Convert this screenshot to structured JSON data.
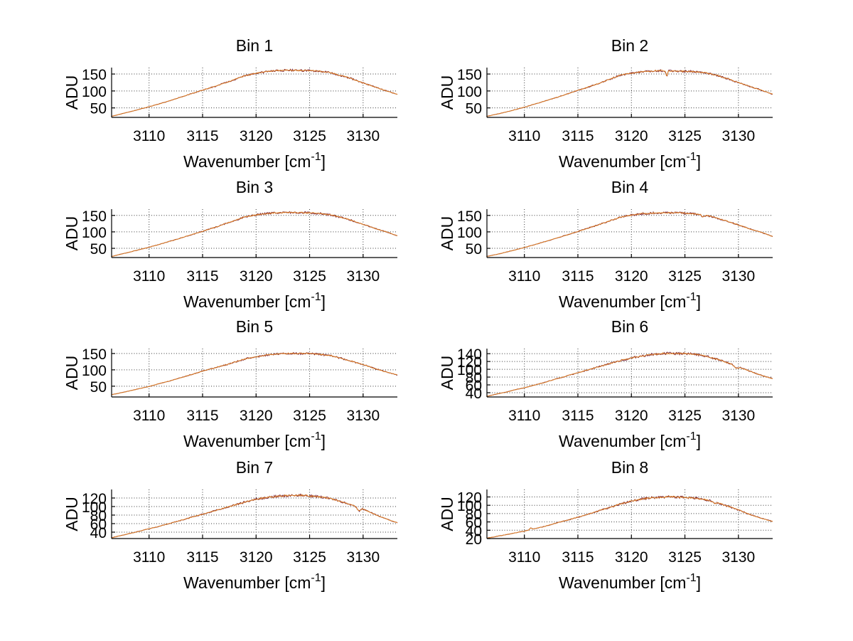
{
  "figure": {
    "background": "#ffffff",
    "description": "4x2 grid of spectra, ADU versus wavenumber, Bin 1 to Bin 8"
  },
  "style": {
    "line_color": "#dd7e22",
    "underlay_color": "#7b2840",
    "grid_color": "#3a3a3a",
    "axis_color": "#000000"
  },
  "chart_data": [
    {
      "type": "line",
      "title": "Bin 1",
      "ylabel": "ADU",
      "xlabel": "Wavenumber [cm⁻¹]",
      "xlabel_main": "Wavenumber [cm",
      "xlabel_sup": "-1",
      "xlabel_end": "]",
      "xlim": [
        3106.5,
        3133.2
      ],
      "xticks": [
        3110,
        3115,
        3120,
        3125,
        3130
      ],
      "ylim": [
        22,
        169
      ],
      "yticks": [
        50,
        100,
        150
      ],
      "grid": true,
      "series": [
        {
          "name": "spectrum",
          "points": [
            [
              3106.5,
              25
            ],
            [
              3108,
              37
            ],
            [
              3110,
              53
            ],
            [
              3112,
              72
            ],
            [
              3114,
              92
            ],
            [
              3116,
              112
            ],
            [
              3117.5,
              128
            ],
            [
              3119,
              145
            ],
            [
              3120,
              152
            ],
            [
              3121,
              157
            ],
            [
              3122,
              160
            ],
            [
              3123,
              161
            ],
            [
              3124,
              161
            ],
            [
              3125,
              160
            ],
            [
              3126,
              158
            ],
            [
              3127,
              153
            ],
            [
              3128,
              145
            ],
            [
              3129,
              135
            ],
            [
              3130,
              124
            ],
            [
              3131,
              113
            ],
            [
              3132,
              102
            ],
            [
              3133.2,
              90
            ]
          ]
        }
      ],
      "features": []
    },
    {
      "type": "line",
      "title": "Bin 2",
      "ylabel": "ADU",
      "xlabel": "Wavenumber [cm⁻¹]",
      "xlabel_main": "Wavenumber [cm",
      "xlabel_sup": "-1",
      "xlabel_end": "]",
      "xlim": [
        3106.5,
        3133.2
      ],
      "xticks": [
        3110,
        3115,
        3120,
        3125,
        3130
      ],
      "ylim": [
        22,
        169
      ],
      "yticks": [
        50,
        100,
        150
      ],
      "grid": true,
      "series": [
        {
          "name": "spectrum",
          "points": [
            [
              3106.5,
              25
            ],
            [
              3108,
              36
            ],
            [
              3110,
              52
            ],
            [
              3112,
              71
            ],
            [
              3114,
              91
            ],
            [
              3116,
              112
            ],
            [
              3117.5,
              129
            ],
            [
              3119,
              147
            ],
            [
              3120,
              153
            ],
            [
              3121,
              157
            ],
            [
              3122,
              159
            ],
            [
              3123,
              160
            ],
            [
              3124,
              159
            ],
            [
              3125,
              158
            ],
            [
              3126,
              157
            ],
            [
              3127,
              153
            ],
            [
              3128,
              146
            ],
            [
              3129,
              136
            ],
            [
              3130,
              125
            ],
            [
              3131,
              114
            ],
            [
              3132,
              104
            ],
            [
              3133.2,
              90
            ]
          ]
        }
      ],
      "features": [
        {
          "x": 3123.3,
          "depth": 16,
          "width": 0.07
        }
      ]
    },
    {
      "type": "line",
      "title": "Bin 3",
      "ylabel": "ADU",
      "xlabel": "Wavenumber [cm⁻¹]",
      "xlabel_main": "Wavenumber [cm",
      "xlabel_sup": "-1",
      "xlabel_end": "]",
      "xlim": [
        3106.5,
        3133.2
      ],
      "xticks": [
        3110,
        3115,
        3120,
        3125,
        3130
      ],
      "ylim": [
        22,
        169
      ],
      "yticks": [
        50,
        100,
        150
      ],
      "grid": true,
      "series": [
        {
          "name": "spectrum",
          "points": [
            [
              3106.5,
              25
            ],
            [
              3108,
              37
            ],
            [
              3110,
              53
            ],
            [
              3112,
              72
            ],
            [
              3114,
              92
            ],
            [
              3116,
              112
            ],
            [
              3117.5,
              129
            ],
            [
              3119,
              146
            ],
            [
              3120,
              152
            ],
            [
              3121,
              156
            ],
            [
              3122,
              158
            ],
            [
              3123,
              159
            ],
            [
              3124,
              159
            ],
            [
              3125,
              158
            ],
            [
              3126,
              156
            ],
            [
              3127,
              151
            ],
            [
              3128,
              143
            ],
            [
              3129,
              134
            ],
            [
              3130,
              123
            ],
            [
              3131,
              112
            ],
            [
              3132,
              102
            ],
            [
              3133.2,
              88
            ]
          ]
        }
      ],
      "features": []
    },
    {
      "type": "line",
      "title": "Bin 4",
      "ylabel": "ADU",
      "xlabel": "Wavenumber [cm⁻¹]",
      "xlabel_main": "Wavenumber [cm",
      "xlabel_sup": "-1",
      "xlabel_end": "]",
      "xlim": [
        3106.5,
        3133.2
      ],
      "xticks": [
        3110,
        3115,
        3120,
        3125,
        3130
      ],
      "ylim": [
        22,
        169
      ],
      "yticks": [
        50,
        100,
        150
      ],
      "grid": true,
      "series": [
        {
          "name": "spectrum",
          "points": [
            [
              3106.5,
              25
            ],
            [
              3108,
              36
            ],
            [
              3110,
              52
            ],
            [
              3112,
              71
            ],
            [
              3114,
              91
            ],
            [
              3116,
              111
            ],
            [
              3117.5,
              128
            ],
            [
              3119,
              145
            ],
            [
              3120,
              151
            ],
            [
              3121,
              155
            ],
            [
              3122,
              157
            ],
            [
              3123,
              158
            ],
            [
              3124,
              158
            ],
            [
              3125,
              157
            ],
            [
              3126,
              155
            ],
            [
              3127,
              150
            ],
            [
              3128,
              142
            ],
            [
              3129,
              132
            ],
            [
              3130,
              121
            ],
            [
              3131,
              110
            ],
            [
              3132,
              100
            ],
            [
              3133.2,
              86
            ]
          ]
        }
      ],
      "features": [
        {
          "x": 3126.7,
          "depth": 6,
          "width": 0.12
        }
      ]
    },
    {
      "type": "line",
      "title": "Bin 5",
      "ylabel": "ADU",
      "xlabel": "Wavenumber [cm⁻¹]",
      "xlabel_main": "Wavenumber [cm",
      "xlabel_sup": "-1",
      "xlabel_end": "]",
      "xlim": [
        3106.5,
        3133.2
      ],
      "xticks": [
        3110,
        3115,
        3120,
        3125,
        3130
      ],
      "ylim": [
        17,
        165
      ],
      "yticks": [
        50,
        100,
        150
      ],
      "grid": true,
      "series": [
        {
          "name": "spectrum",
          "points": [
            [
              3106.5,
              24
            ],
            [
              3108,
              34
            ],
            [
              3110,
              49
            ],
            [
              3112,
              67
            ],
            [
              3114,
              86
            ],
            [
              3116,
              105
            ],
            [
              3117.5,
              119
            ],
            [
              3119,
              133
            ],
            [
              3120,
              140
            ],
            [
              3121,
              145
            ],
            [
              3122,
              148
            ],
            [
              3123,
              150
            ],
            [
              3124,
              150
            ],
            [
              3125,
              149
            ],
            [
              3126,
              147
            ],
            [
              3127,
              143
            ],
            [
              3128,
              135
            ],
            [
              3129,
              126
            ],
            [
              3130,
              116
            ],
            [
              3131,
              105
            ],
            [
              3132,
              95
            ],
            [
              3133.2,
              84
            ]
          ]
        }
      ],
      "features": []
    },
    {
      "type": "line",
      "title": "Bin 6",
      "ylabel": "ADU",
      "xlabel": "Wavenumber [cm⁻¹]",
      "xlabel_main": "Wavenumber [cm",
      "xlabel_sup": "-1",
      "xlabel_end": "]",
      "xlim": [
        3106.5,
        3133.2
      ],
      "xticks": [
        3110,
        3115,
        3120,
        3125,
        3130
      ],
      "ylim": [
        29,
        153
      ],
      "yticks": [
        40,
        60,
        80,
        100,
        120,
        140
      ],
      "grid": true,
      "series": [
        {
          "name": "spectrum",
          "points": [
            [
              3106.5,
              31
            ],
            [
              3108,
              40
            ],
            [
              3110,
              53
            ],
            [
              3112,
              67
            ],
            [
              3114,
              83
            ],
            [
              3116,
              99
            ],
            [
              3117.5,
              111
            ],
            [
              3119,
              123
            ],
            [
              3120,
              129
            ],
            [
              3121,
              134
            ],
            [
              3122,
              138
            ],
            [
              3123,
              141
            ],
            [
              3124,
              141
            ],
            [
              3125,
              140
            ],
            [
              3126,
              138
            ],
            [
              3127,
              133
            ],
            [
              3128,
              126
            ],
            [
              3129,
              117
            ],
            [
              3130,
              107
            ],
            [
              3131,
              96
            ],
            [
              3132,
              86
            ],
            [
              3133.2,
              76
            ]
          ]
        }
      ],
      "features": [
        {
          "x": 3129.8,
          "depth": 6,
          "width": 0.18
        }
      ]
    },
    {
      "type": "line",
      "title": "Bin 7",
      "ylabel": "ADU",
      "xlabel": "Wavenumber [cm⁻¹]",
      "xlabel_main": "Wavenumber [cm",
      "xlabel_sup": "-1",
      "xlabel_end": "]",
      "xlim": [
        3106.5,
        3133.2
      ],
      "xticks": [
        3110,
        3115,
        3120,
        3125,
        3130
      ],
      "ylim": [
        25,
        140
      ],
      "yticks": [
        40,
        60,
        80,
        100,
        120
      ],
      "grid": true,
      "series": [
        {
          "name": "spectrum",
          "points": [
            [
              3106.5,
              27
            ],
            [
              3108,
              36
            ],
            [
              3110,
              48
            ],
            [
              3112,
              61
            ],
            [
              3114,
              75
            ],
            [
              3116,
              89
            ],
            [
              3117.5,
              100
            ],
            [
              3119,
              111
            ],
            [
              3120,
              117
            ],
            [
              3121,
              121
            ],
            [
              3122,
              124
            ],
            [
              3123,
              126
            ],
            [
              3124,
              126
            ],
            [
              3125,
              125
            ],
            [
              3126,
              123
            ],
            [
              3127,
              118
            ],
            [
              3128,
              111
            ],
            [
              3129,
              103
            ],
            [
              3130,
              94
            ],
            [
              3131,
              83
            ],
            [
              3132,
              73
            ],
            [
              3133.2,
              62
            ]
          ]
        }
      ],
      "features": [
        {
          "x": 3129.6,
          "depth": 8,
          "width": 0.15
        }
      ]
    },
    {
      "type": "line",
      "title": "Bin 8",
      "ylabel": "ADU",
      "xlabel": "Wavenumber [cm⁻¹]",
      "xlabel_main": "Wavenumber [cm",
      "xlabel_sup": "-1",
      "xlabel_end": "]",
      "xlim": [
        3106.5,
        3133.2
      ],
      "xticks": [
        3110,
        3115,
        3120,
        3125,
        3130
      ],
      "ylim": [
        20,
        138
      ],
      "yticks": [
        20,
        40,
        60,
        80,
        100,
        120
      ],
      "grid": true,
      "series": [
        {
          "name": "spectrum",
          "points": [
            [
              3106.5,
              21
            ],
            [
              3108,
              28
            ],
            [
              3110,
              38
            ],
            [
              3112,
              50
            ],
            [
              3114,
              64
            ],
            [
              3116,
              79
            ],
            [
              3117.5,
              91
            ],
            [
              3119,
              103
            ],
            [
              3120,
              110
            ],
            [
              3121,
              115
            ],
            [
              3122,
              118
            ],
            [
              3123,
              120
            ],
            [
              3124,
              120
            ],
            [
              3125,
              119
            ],
            [
              3126,
              117
            ],
            [
              3127,
              113
            ],
            [
              3128,
              106
            ],
            [
              3129,
              98
            ],
            [
              3130,
              89
            ],
            [
              3131,
              79
            ],
            [
              3132,
              70
            ],
            [
              3133.2,
              61
            ]
          ]
        }
      ],
      "features": [
        {
          "x": 3110.6,
          "depth": -4,
          "width": 0.1
        },
        {
          "x": 3127.8,
          "depth": 4,
          "width": 0.12
        }
      ]
    }
  ]
}
